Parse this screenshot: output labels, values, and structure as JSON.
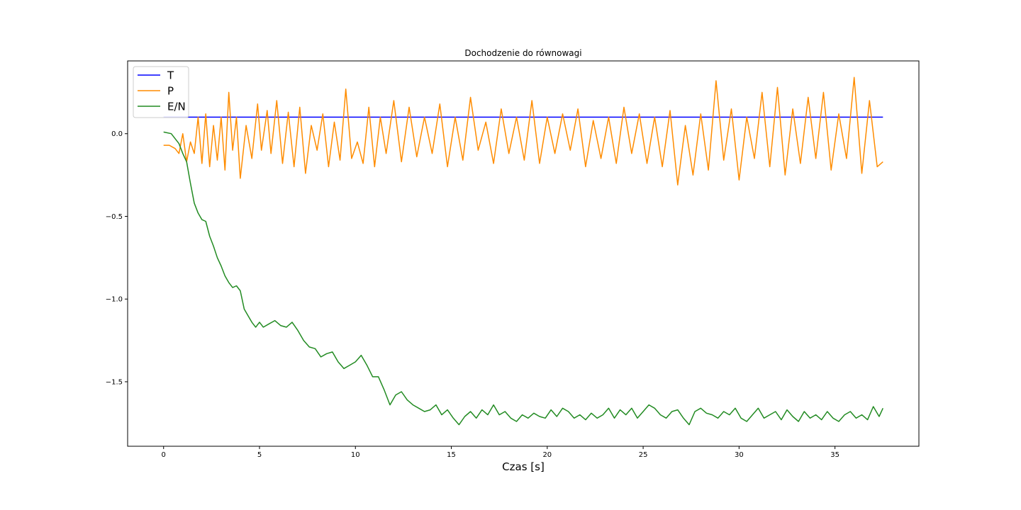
{
  "chart_data": {
    "type": "line",
    "title": "Dochodzenie do równowagi",
    "xlabel": "Czas [s]",
    "ylabel": "",
    "xlim": [
      -1.875,
      39.375
    ],
    "ylim": [
      -1.89,
      0.44
    ],
    "xticks": [
      0,
      5,
      10,
      15,
      20,
      25,
      30,
      35
    ],
    "xtick_labels": [
      "0",
      "5",
      "10",
      "15",
      "20",
      "25",
      "30",
      "35"
    ],
    "yticks": [
      0.0,
      -0.5,
      -1.0,
      -1.5
    ],
    "ytick_labels": [
      "0.0",
      "−0.5",
      "−1.0",
      "−1.5"
    ],
    "grid": false,
    "legend_position": "upper-left",
    "series": [
      {
        "name": "T",
        "color": "#0000ff",
        "x": [
          0,
          37.5
        ],
        "y": [
          0.1,
          0.1
        ]
      },
      {
        "name": "P",
        "color": "#ff8c00",
        "x": [
          0,
          0.3,
          0.6,
          0.8,
          1.0,
          1.2,
          1.4,
          1.6,
          1.8,
          2.0,
          2.2,
          2.4,
          2.6,
          2.8,
          3.0,
          3.2,
          3.4,
          3.6,
          3.8,
          4.0,
          4.3,
          4.6,
          4.9,
          5.1,
          5.4,
          5.6,
          5.9,
          6.2,
          6.5,
          6.8,
          7.1,
          7.4,
          7.7,
          8.0,
          8.3,
          8.6,
          8.9,
          9.2,
          9.5,
          9.8,
          10.1,
          10.4,
          10.7,
          11.0,
          11.3,
          11.6,
          12.0,
          12.4,
          12.8,
          13.2,
          13.6,
          14.0,
          14.4,
          14.8,
          15.2,
          15.6,
          16.0,
          16.4,
          16.8,
          17.2,
          17.6,
          18.0,
          18.4,
          18.8,
          19.2,
          19.6,
          20.0,
          20.4,
          20.8,
          21.2,
          21.6,
          22.0,
          22.4,
          22.8,
          23.2,
          23.6,
          24.0,
          24.4,
          24.8,
          25.2,
          25.6,
          26.0,
          26.4,
          26.8,
          27.2,
          27.6,
          28.0,
          28.4,
          28.8,
          29.2,
          29.6,
          30.0,
          30.4,
          30.8,
          31.2,
          31.6,
          32.0,
          32.4,
          32.8,
          33.2,
          33.6,
          34.0,
          34.4,
          34.8,
          35.2,
          35.6,
          36.0,
          36.4,
          36.8,
          37.2,
          37.5
        ],
        "y": [
          -0.07,
          -0.07,
          -0.09,
          -0.12,
          0.0,
          -0.17,
          -0.05,
          -0.12,
          0.1,
          -0.18,
          0.12,
          -0.2,
          0.05,
          -0.16,
          0.1,
          -0.22,
          0.25,
          -0.1,
          0.1,
          -0.27,
          0.05,
          -0.15,
          0.18,
          -0.1,
          0.14,
          -0.12,
          0.2,
          -0.18,
          0.13,
          -0.2,
          0.16,
          -0.24,
          0.05,
          -0.1,
          0.12,
          -0.2,
          0.07,
          -0.16,
          0.27,
          -0.15,
          -0.05,
          -0.18,
          0.16,
          -0.2,
          0.1,
          -0.12,
          0.2,
          -0.17,
          0.16,
          -0.14,
          0.1,
          -0.12,
          0.18,
          -0.2,
          0.1,
          -0.16,
          0.22,
          -0.1,
          0.07,
          -0.18,
          0.15,
          -0.12,
          0.1,
          -0.16,
          0.2,
          -0.18,
          0.1,
          -0.12,
          0.12,
          -0.1,
          0.15,
          -0.2,
          0.08,
          -0.15,
          0.1,
          -0.18,
          0.16,
          -0.12,
          0.12,
          -0.18,
          0.1,
          -0.2,
          0.14,
          -0.31,
          0.05,
          -0.25,
          0.12,
          -0.22,
          0.32,
          -0.16,
          0.15,
          -0.28,
          0.1,
          -0.15,
          0.25,
          -0.2,
          0.28,
          -0.25,
          0.15,
          -0.18,
          0.22,
          -0.15,
          0.25,
          -0.22,
          0.12,
          -0.15,
          0.34,
          -0.24,
          0.2,
          -0.2,
          -0.17
        ]
      },
      {
        "name": "E/N",
        "color": "#228b22",
        "x": [
          0,
          0.4,
          0.8,
          1.0,
          1.2,
          1.4,
          1.6,
          1.8,
          2.0,
          2.2,
          2.4,
          2.6,
          2.8,
          3.0,
          3.2,
          3.4,
          3.6,
          3.8,
          4.0,
          4.2,
          4.4,
          4.6,
          4.8,
          5.0,
          5.2,
          5.5,
          5.8,
          6.1,
          6.4,
          6.7,
          7.0,
          7.3,
          7.6,
          7.9,
          8.2,
          8.5,
          8.8,
          9.1,
          9.4,
          9.7,
          10.0,
          10.3,
          10.6,
          10.9,
          11.2,
          11.5,
          11.8,
          12.1,
          12.4,
          12.7,
          13.0,
          13.3,
          13.6,
          13.9,
          14.2,
          14.5,
          14.8,
          15.1,
          15.4,
          15.7,
          16.0,
          16.3,
          16.6,
          16.9,
          17.2,
          17.5,
          17.8,
          18.1,
          18.4,
          18.7,
          19.0,
          19.3,
          19.6,
          19.9,
          20.2,
          20.5,
          20.8,
          21.1,
          21.4,
          21.7,
          22.0,
          22.3,
          22.6,
          22.9,
          23.2,
          23.5,
          23.8,
          24.1,
          24.4,
          24.7,
          25.0,
          25.3,
          25.6,
          25.9,
          26.2,
          26.5,
          26.8,
          27.1,
          27.4,
          27.7,
          28.0,
          28.3,
          28.6,
          28.9,
          29.2,
          29.5,
          29.8,
          30.1,
          30.4,
          30.7,
          31.0,
          31.3,
          31.6,
          31.9,
          32.2,
          32.5,
          32.8,
          33.1,
          33.4,
          33.7,
          34.0,
          34.3,
          34.6,
          34.9,
          35.2,
          35.5,
          35.8,
          36.1,
          36.4,
          36.7,
          37.0,
          37.3,
          37.5
        ],
        "y": [
          0.01,
          0.0,
          -0.06,
          -0.12,
          -0.17,
          -0.3,
          -0.42,
          -0.48,
          -0.52,
          -0.53,
          -0.62,
          -0.68,
          -0.75,
          -0.8,
          -0.86,
          -0.9,
          -0.93,
          -0.92,
          -0.95,
          -1.06,
          -1.1,
          -1.14,
          -1.17,
          -1.14,
          -1.17,
          -1.15,
          -1.13,
          -1.16,
          -1.17,
          -1.14,
          -1.19,
          -1.25,
          -1.29,
          -1.3,
          -1.35,
          -1.33,
          -1.32,
          -1.38,
          -1.42,
          -1.4,
          -1.38,
          -1.34,
          -1.4,
          -1.47,
          -1.47,
          -1.55,
          -1.64,
          -1.58,
          -1.56,
          -1.61,
          -1.64,
          -1.66,
          -1.68,
          -1.67,
          -1.64,
          -1.7,
          -1.67,
          -1.72,
          -1.76,
          -1.71,
          -1.68,
          -1.72,
          -1.67,
          -1.7,
          -1.64,
          -1.7,
          -1.68,
          -1.72,
          -1.74,
          -1.7,
          -1.72,
          -1.69,
          -1.71,
          -1.72,
          -1.67,
          -1.71,
          -1.66,
          -1.68,
          -1.72,
          -1.7,
          -1.73,
          -1.69,
          -1.72,
          -1.7,
          -1.66,
          -1.72,
          -1.67,
          -1.7,
          -1.66,
          -1.72,
          -1.68,
          -1.64,
          -1.66,
          -1.7,
          -1.72,
          -1.68,
          -1.67,
          -1.72,
          -1.76,
          -1.68,
          -1.66,
          -1.69,
          -1.7,
          -1.72,
          -1.68,
          -1.7,
          -1.66,
          -1.72,
          -1.74,
          -1.7,
          -1.66,
          -1.72,
          -1.7,
          -1.68,
          -1.73,
          -1.67,
          -1.71,
          -1.74,
          -1.68,
          -1.72,
          -1.7,
          -1.73,
          -1.68,
          -1.72,
          -1.74,
          -1.7,
          -1.68,
          -1.72,
          -1.7,
          -1.73,
          -1.65,
          -1.71,
          -1.66
        ]
      }
    ]
  }
}
